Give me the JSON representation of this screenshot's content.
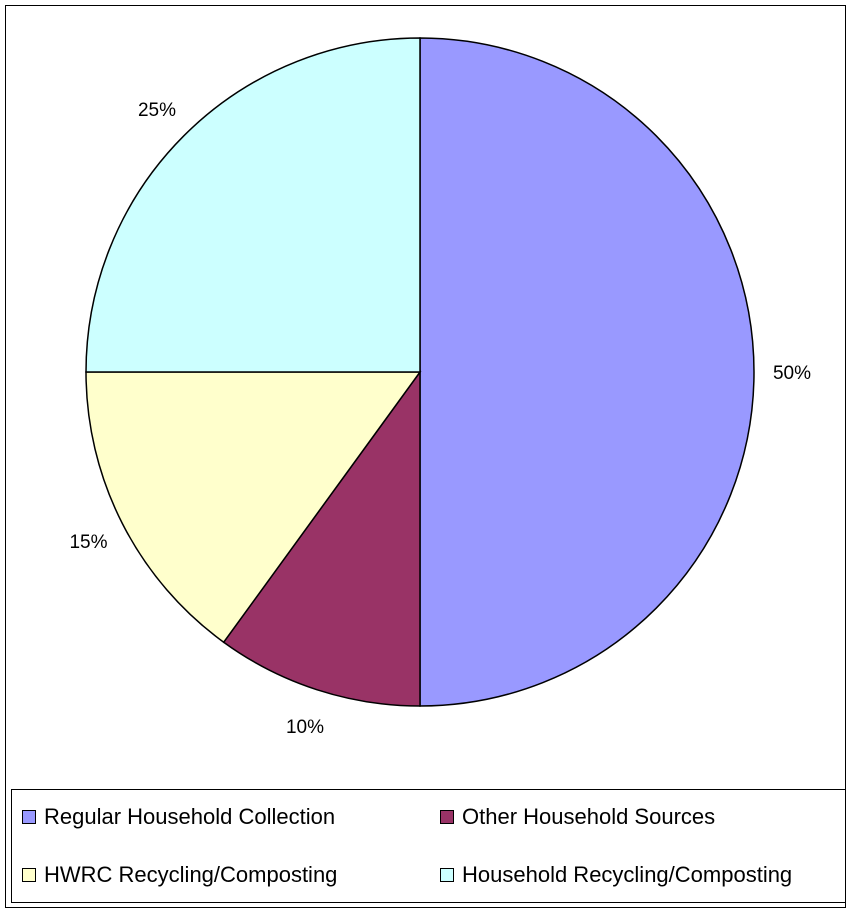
{
  "chart_data": {
    "type": "pie",
    "title": "",
    "slices": [
      {
        "label": "Regular Household Collection",
        "value": 50,
        "display": "50%",
        "color": "#9999ff"
      },
      {
        "label": "Other Household Sources",
        "value": 10,
        "display": "10%",
        "color": "#993366"
      },
      {
        "label": "HWRC Recycling/Composting",
        "value": 15,
        "display": "15%",
        "color": "#ffffcc"
      },
      {
        "label": "Household Recycling/Composting",
        "value": 25,
        "display": "25%",
        "color": "#ccffff"
      }
    ],
    "start": "12 o'clock",
    "direction": "clockwise",
    "legend_position": "bottom"
  },
  "legend": {
    "items": [
      {
        "label": "Regular Household Collection",
        "color": "#9999ff"
      },
      {
        "label": "Other Household Sources",
        "color": "#993366"
      },
      {
        "label": "HWRC Recycling/Composting",
        "color": "#ffffcc"
      },
      {
        "label": "Household Recycling/Composting",
        "color": "#ccffff"
      }
    ]
  }
}
